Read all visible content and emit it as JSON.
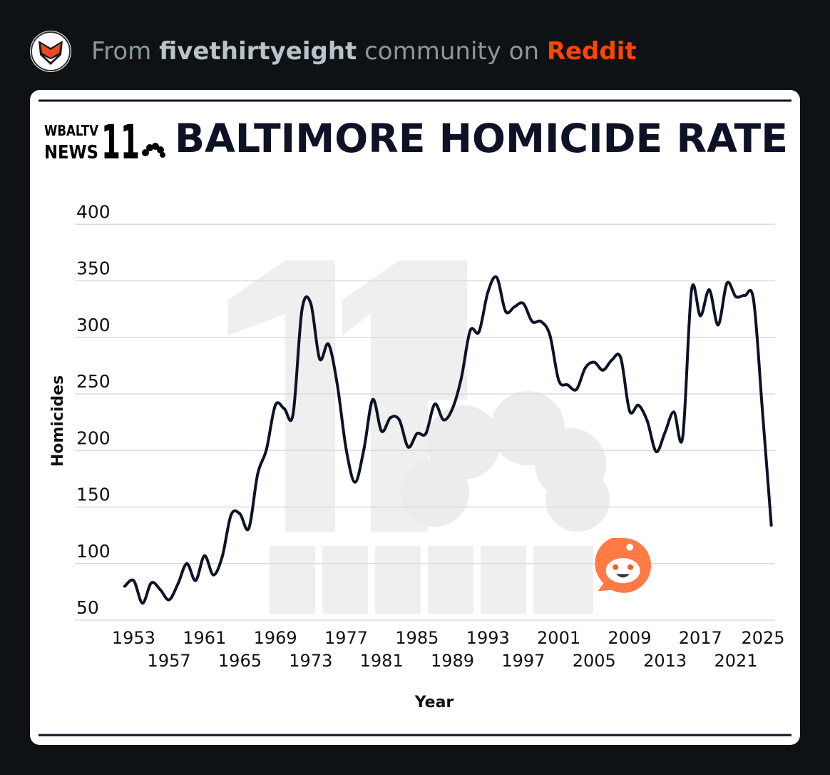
{
  "header": {
    "prefix": "From",
    "community": "fivethirtyeight",
    "middle": "community on",
    "platform": "Reddit",
    "avatar_icon": "fox-icon",
    "accent": "#ff4500"
  },
  "logo": {
    "line1": "WBALTV",
    "line2": "NEWS",
    "number": "11"
  },
  "watermark": {
    "number": "11",
    "text": "WBALTV"
  },
  "chart_data": {
    "type": "line",
    "title": "BALTIMORE HOMICIDE RATE",
    "xlabel": "Year",
    "ylabel": "Homicides",
    "ylim": [
      50,
      400
    ],
    "yticks": [
      400,
      350,
      300,
      250,
      200,
      150,
      100,
      50
    ],
    "xticks": [
      1953,
      1957,
      1961,
      1965,
      1969,
      1973,
      1977,
      1981,
      1985,
      1989,
      1993,
      1997,
      2001,
      2005,
      2009,
      2013,
      2017,
      2021,
      2025
    ],
    "grid": true,
    "line_color": "#0d1226",
    "x": [
      1952,
      1953,
      1954,
      1955,
      1956,
      1957,
      1958,
      1959,
      1960,
      1961,
      1962,
      1963,
      1964,
      1965,
      1966,
      1967,
      1968,
      1969,
      1970,
      1971,
      1972,
      1973,
      1974,
      1975,
      1976,
      1977,
      1978,
      1979,
      1980,
      1981,
      1982,
      1983,
      1984,
      1985,
      1986,
      1987,
      1988,
      1989,
      1990,
      1991,
      1992,
      1993,
      1994,
      1995,
      1996,
      1997,
      1998,
      1999,
      2000,
      2001,
      2002,
      2003,
      2004,
      2005,
      2006,
      2007,
      2008,
      2009,
      2010,
      2011,
      2012,
      2013,
      2014,
      2015,
      2016,
      2017,
      2018,
      2019,
      2020,
      2021,
      2022,
      2023,
      2024,
      2025
    ],
    "series": [
      {
        "name": "Homicides",
        "values": [
          80,
          85,
          65,
          83,
          77,
          68,
          82,
          100,
          85,
          107,
          90,
          106,
          143,
          144,
          131,
          179,
          201,
          240,
          237,
          232,
          324,
          330,
          281,
          294,
          258,
          201,
          172,
          201,
          245,
          217,
          229,
          227,
          203,
          215,
          215,
          241,
          227,
          237,
          264,
          306,
          305,
          340,
          353,
          323,
          327,
          330,
          314,
          314,
          302,
          262,
          258,
          254,
          273,
          278,
          271,
          280,
          282,
          235,
          240,
          226,
          199,
          216,
          234,
          212,
          342,
          319,
          342,
          311,
          348,
          336,
          337,
          333,
          235,
          134
        ]
      }
    ]
  },
  "badge": {
    "icon": "reddit-snoo-icon"
  }
}
